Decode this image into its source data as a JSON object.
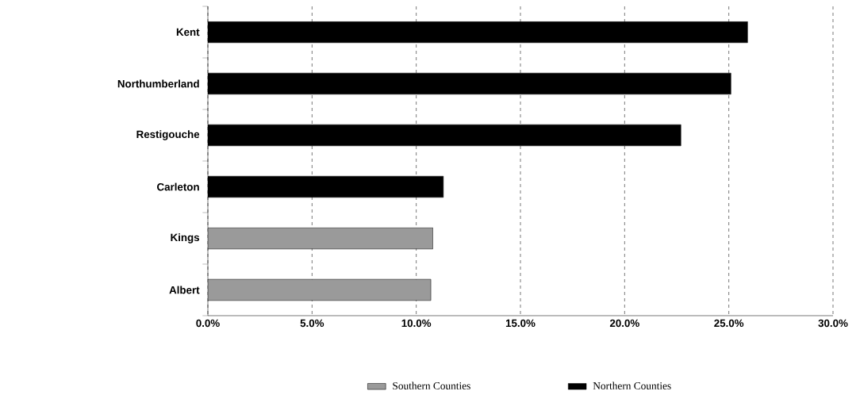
{
  "chart_data": {
    "type": "bar",
    "orientation": "horizontal",
    "categories": [
      "Kent",
      "Northumberland",
      "Restigouche",
      "Carleton",
      "Kings",
      "Albert"
    ],
    "series": [
      {
        "name": "Southern Counties",
        "color": "#9a9a9a",
        "values": [
          null,
          null,
          null,
          null,
          10.8,
          10.7
        ]
      },
      {
        "name": "Northern Counties",
        "color": "#000000",
        "values": [
          25.9,
          25.1,
          22.7,
          11.3,
          null,
          null
        ]
      }
    ],
    "xlim": [
      0,
      30
    ],
    "xticks": [
      {
        "value": 0,
        "label": "0.0%"
      },
      {
        "value": 5,
        "label": "5.0%"
      },
      {
        "value": 10,
        "label": "10.0%"
      },
      {
        "value": 15,
        "label": "15.0%"
      },
      {
        "value": 20,
        "label": "20.0%"
      },
      {
        "value": 25,
        "label": "25.0%"
      },
      {
        "value": 30,
        "label": "30.0%"
      }
    ],
    "grid": "x",
    "legend": "bottom"
  }
}
